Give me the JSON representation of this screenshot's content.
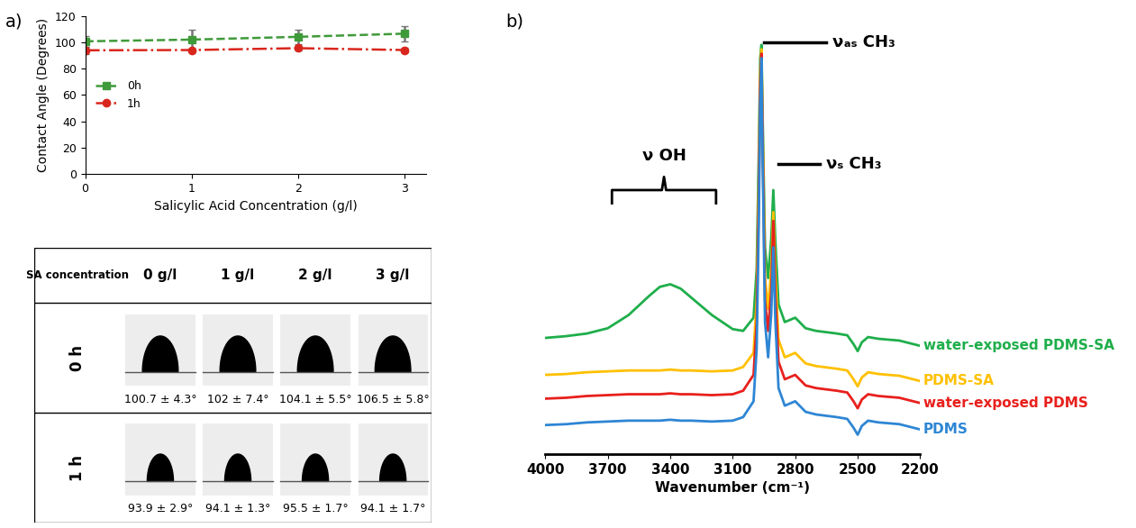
{
  "panel_labels": [
    "a)",
    "b)"
  ],
  "chart_data": [
    {
      "type": "line",
      "xlabel": "Salicylic Acid Concentration (g/l)",
      "ylabel": "Contact Angle (Degrees)",
      "x": [
        0,
        1,
        2,
        3
      ],
      "xlim": [
        0,
        3.2
      ],
      "xticks": [
        0,
        1,
        2,
        3
      ],
      "ylim": [
        0,
        120
      ],
      "yticks": [
        0,
        20,
        40,
        60,
        80,
        100,
        120
      ],
      "legend": "center left",
      "series": [
        {
          "name": "0h",
          "color": "#3f9a3a",
          "marker": "square",
          "line_style": "dashed",
          "values": [
            100.7,
            102,
            104.1,
            106.5
          ],
          "error": [
            4.3,
            7.4,
            5.5,
            5.8
          ]
        },
        {
          "name": "1h",
          "color": "#d9261c",
          "marker": "circle",
          "line_style": "dashdot",
          "values": [
            93.9,
            94.1,
            95.5,
            94.1
          ],
          "error": [
            2.9,
            1.3,
            1.7,
            1.7
          ]
        }
      ]
    },
    {
      "type": "line",
      "xlabel": "Wavenumber (cm⁻¹)",
      "x": [
        4000,
        3900,
        3800,
        3700,
        3600,
        3500,
        3450,
        3400,
        3350,
        3300,
        3200,
        3100,
        3050,
        3000,
        2985,
        2975,
        2968,
        2962,
        2956,
        2945,
        2930,
        2915,
        2905,
        2895,
        2880,
        2850,
        2800,
        2750,
        2700,
        2600,
        2550,
        2520,
        2500,
        2480,
        2450,
        2400,
        2300,
        2200
      ],
      "xlim": [
        4000,
        2200
      ],
      "xticks": [
        4000,
        3700,
        3400,
        3100,
        2800,
        2500,
        2200
      ],
      "ylim": [
        0,
        480
      ],
      "yticks": [],
      "tick_labels": "x",
      "annotations": [
        "ν OH",
        "νₐₛ CH₃",
        "νₛ CH₃"
      ],
      "series": [
        {
          "name": "water-exposed PDMS-SA",
          "color": "#1fae4b",
          "values": [
            132,
            134,
            137,
            143,
            158,
            180,
            190,
            193,
            188,
            178,
            158,
            142,
            140,
            155,
            210,
            340,
            450,
            465,
            380,
            235,
            200,
            245,
            300,
            240,
            170,
            150,
            155,
            143,
            140,
            137,
            135,
            125,
            117,
            127,
            133,
            131,
            129,
            123
          ]
        },
        {
          "name": "PDMS-SA",
          "color": "#ffc000",
          "values": [
            90,
            91,
            93,
            94,
            95,
            95,
            95,
            96,
            95,
            95,
            94,
            95,
            99,
            115,
            175,
            310,
            435,
            460,
            365,
            200,
            165,
            210,
            275,
            205,
            130,
            110,
            115,
            103,
            100,
            97,
            95,
            85,
            77,
            87,
            93,
            91,
            89,
            83
          ]
        },
        {
          "name": "water-exposed PDMS",
          "color": "#e8201c",
          "values": [
            63,
            64,
            66,
            67,
            68,
            68,
            68,
            69,
            68,
            68,
            67,
            68,
            72,
            90,
            150,
            290,
            420,
            455,
            350,
            175,
            140,
            185,
            265,
            180,
            105,
            85,
            90,
            78,
            75,
            72,
            70,
            60,
            52,
            62,
            68,
            66,
            64,
            58
          ]
        },
        {
          "name": "PDMS",
          "color": "#2e86d4",
          "values": [
            33,
            34,
            36,
            37,
            38,
            38,
            38,
            39,
            38,
            38,
            37,
            38,
            42,
            60,
            120,
            260,
            400,
            450,
            330,
            150,
            110,
            160,
            235,
            150,
            75,
            55,
            60,
            48,
            45,
            42,
            40,
            30,
            22,
            32,
            38,
            36,
            34,
            28
          ]
        }
      ]
    }
  ],
  "table": {
    "header": [
      "SA concentration",
      "0 g/l",
      "1 g/l",
      "2 g/l",
      "3 g/l"
    ],
    "rows": [
      {
        "label": "0 h",
        "cells": [
          "100.7 ± 4.3°",
          "102 ± 7.4°",
          "104.1 ± 5.5°",
          "106.5 ± 5.8°"
        ]
      },
      {
        "label": "1 h",
        "cells": [
          "93.9 ± 2.9°",
          "94.1 ± 1.3°",
          "95.5 ± 1.7°",
          "94.1 ± 1.7°"
        ]
      }
    ]
  }
}
